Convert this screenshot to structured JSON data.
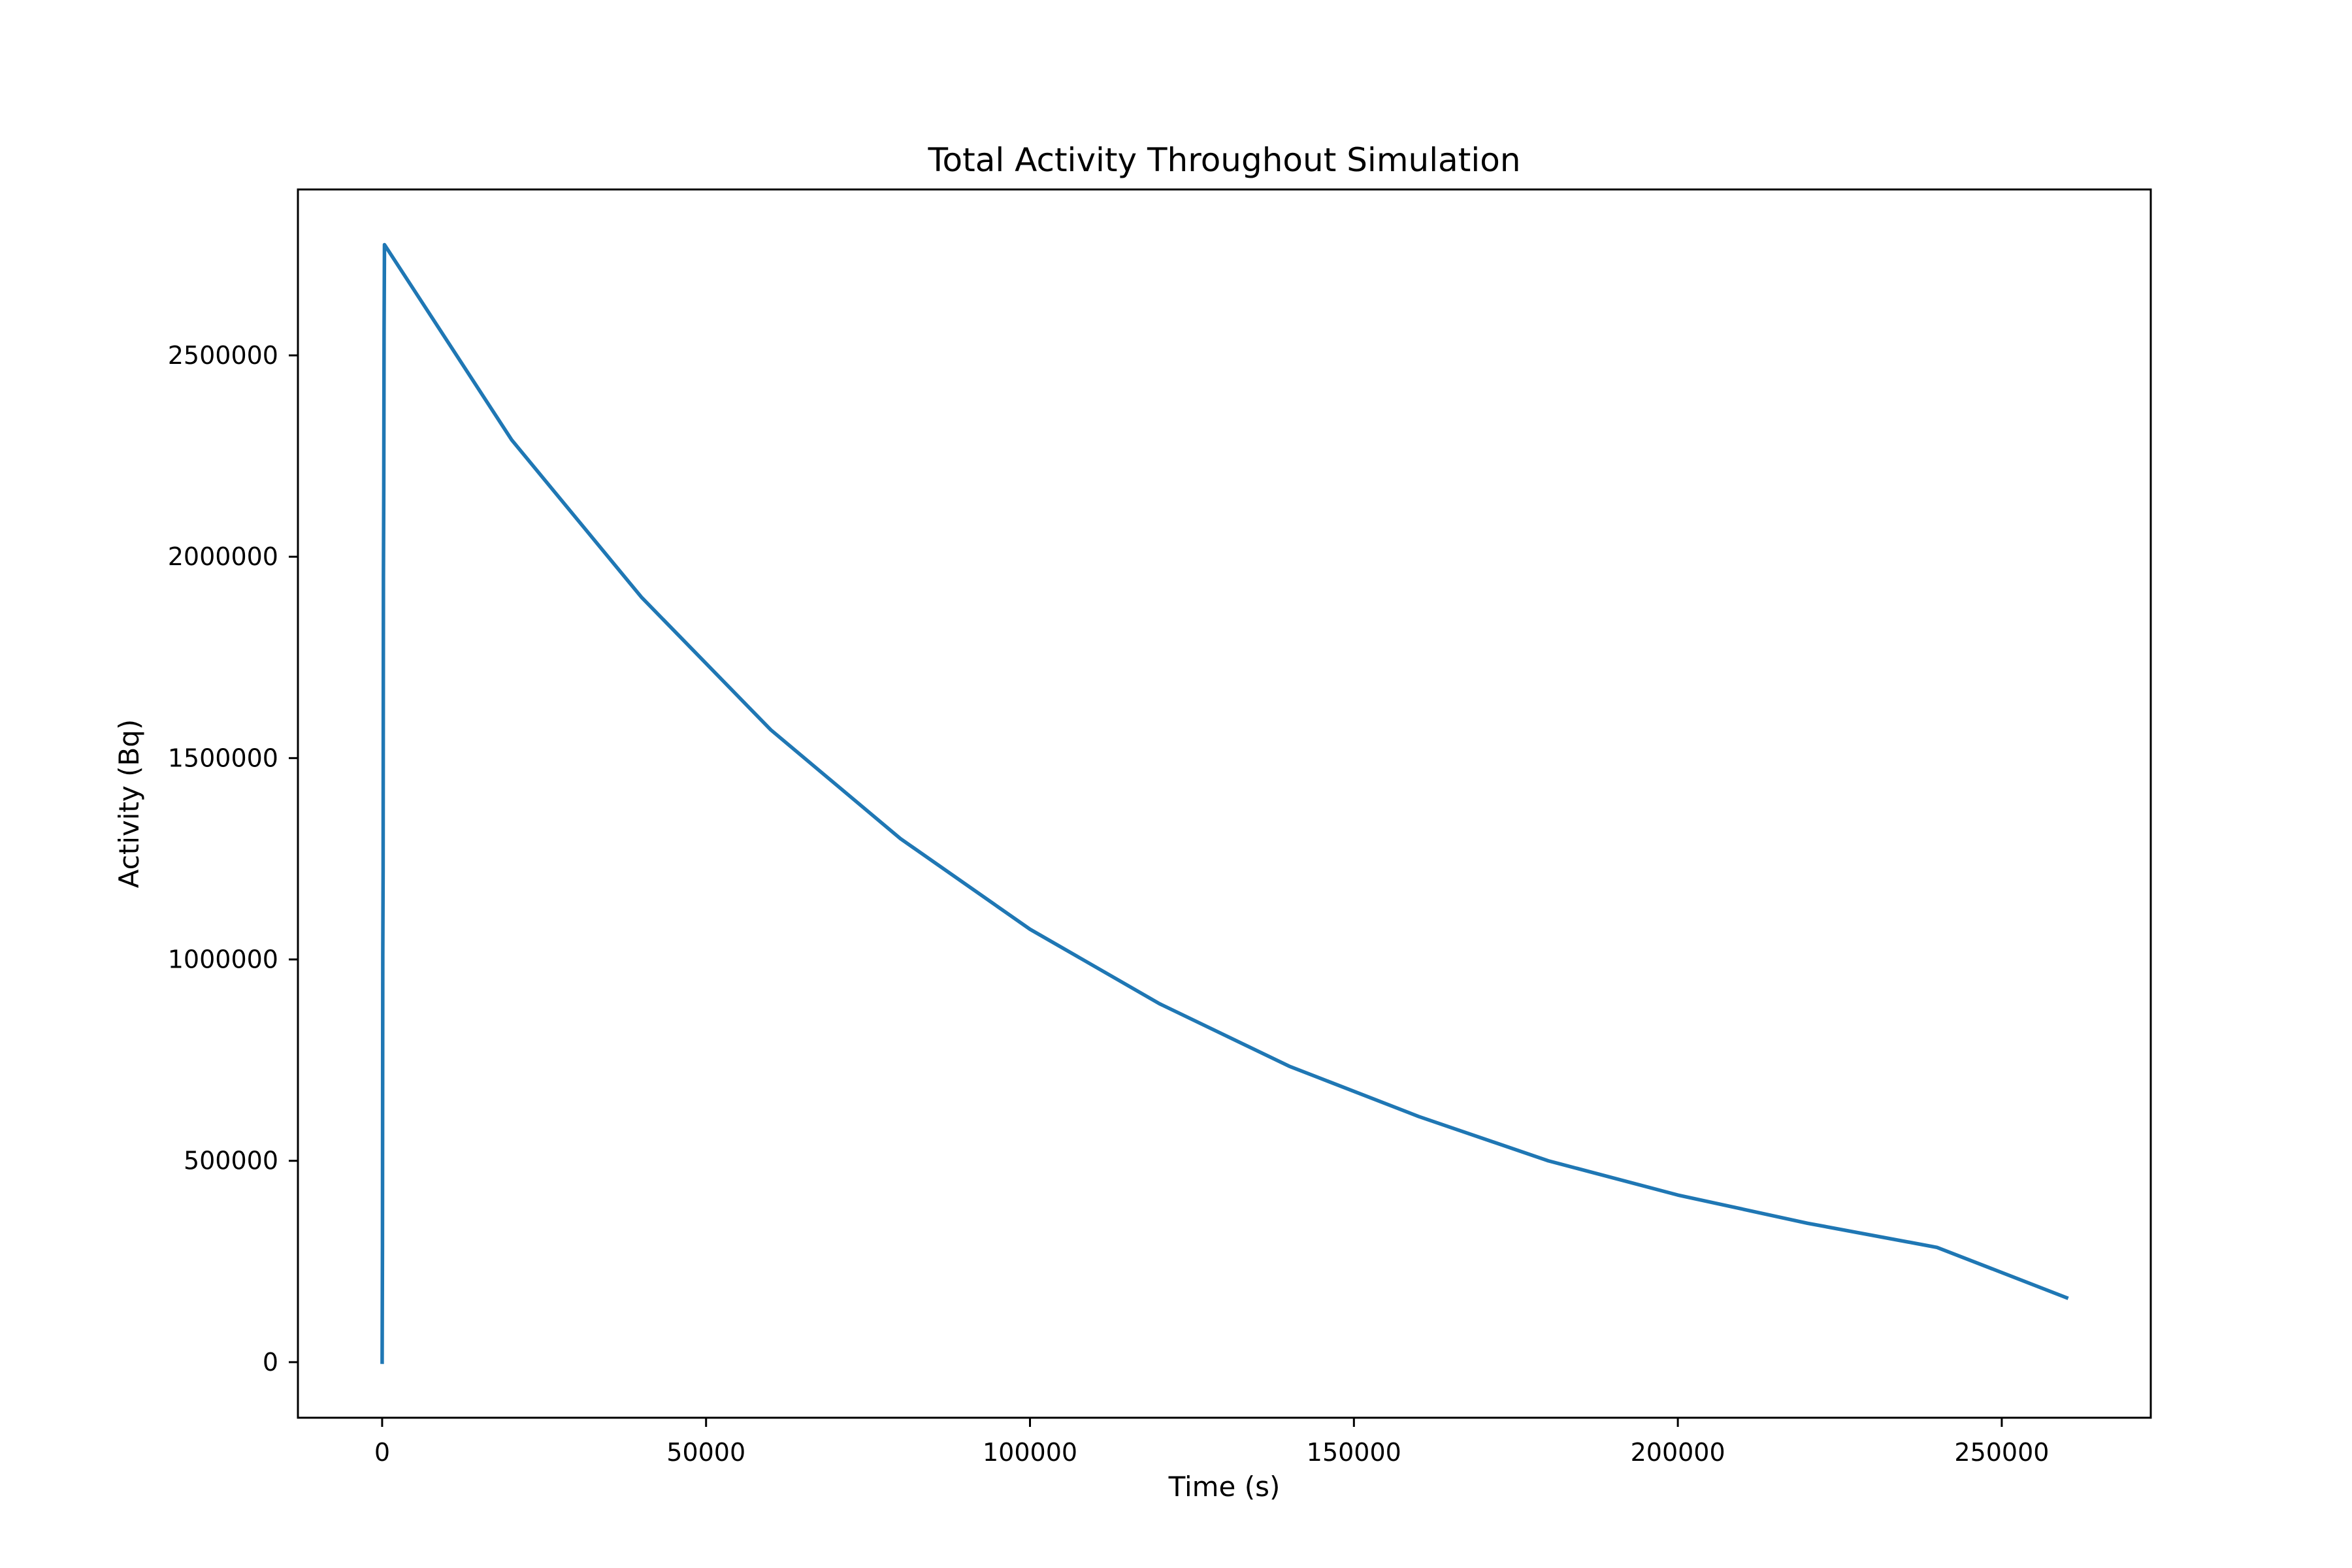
{
  "chart_data": {
    "type": "line",
    "title": "Total Activity Throughout Simulation",
    "xlabel": "Time (s)",
    "ylabel": "Activity (Bq)",
    "xlim": [
      -13000,
      273000
    ],
    "ylim": [
      -138000,
      2912000
    ],
    "x_ticks": [
      0,
      50000,
      100000,
      150000,
      200000,
      250000
    ],
    "x_tick_labels": [
      "0",
      "50000",
      "100000",
      "150000",
      "200000",
      "250000"
    ],
    "y_ticks": [
      0,
      500000,
      1000000,
      1500000,
      2000000,
      2500000
    ],
    "y_tick_labels": [
      "0",
      "500000",
      "1000000",
      "1500000",
      "2000000",
      "2500000"
    ],
    "grid": false,
    "series": [
      {
        "color": "#1f77b4",
        "x": [
          0,
          50,
          100,
          150,
          200,
          250,
          300,
          360,
          20000,
          40000,
          60000,
          80000,
          100000,
          120000,
          140000,
          160000,
          180000,
          200000,
          220000,
          240000,
          260000
        ],
        "y": [
          0,
          290000,
          1010000,
          1220000,
          1950000,
          2170000,
          2560000,
          2775000,
          2290000,
          1900000,
          1570000,
          1300000,
          1075000,
          890000,
          735000,
          610000,
          500000,
          415000,
          345000,
          285000,
          160000
        ]
      }
    ]
  }
}
